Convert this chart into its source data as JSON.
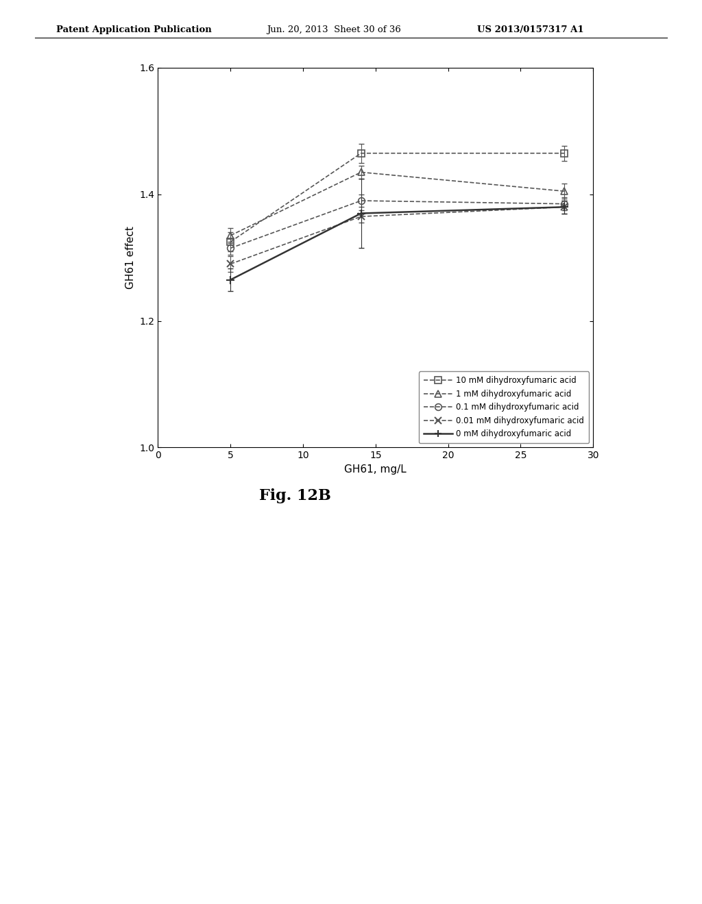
{
  "x_values": [
    5,
    14,
    28
  ],
  "series": [
    {
      "label": "10 mM dihydroxyfumaric acid",
      "y": [
        1.325,
        1.465,
        1.465
      ],
      "yerr": [
        0.015,
        0.015,
        0.012
      ],
      "marker": "s",
      "linestyle": "--",
      "linewidth": 1.2,
      "color": "#555555",
      "markersize": 7,
      "fillstyle": "none"
    },
    {
      "label": "1 mM dihydroxyfumaric acid",
      "y": [
        1.335,
        1.435,
        1.405
      ],
      "yerr": [
        0.012,
        0.01,
        0.012
      ],
      "marker": "^",
      "linestyle": "--",
      "linewidth": 1.2,
      "color": "#555555",
      "markersize": 7,
      "fillstyle": "none"
    },
    {
      "label": "0.1 mM dihydroxyfumaric acid",
      "y": [
        1.315,
        1.39,
        1.385
      ],
      "yerr": [
        0.01,
        0.01,
        0.01
      ],
      "marker": "o",
      "linestyle": "--",
      "linewidth": 1.2,
      "color": "#555555",
      "markersize": 7,
      "fillstyle": "none"
    },
    {
      "label": "0.01 mM dihydroxyfumaric acid",
      "y": [
        1.29,
        1.365,
        1.38
      ],
      "yerr": [
        0.012,
        0.01,
        0.01
      ],
      "marker": "x",
      "linestyle": "--",
      "linewidth": 1.2,
      "color": "#555555",
      "markersize": 7,
      "fillstyle": "none"
    },
    {
      "label": "0 mM dihydroxyfumaric acid",
      "y": [
        1.265,
        1.37,
        1.38
      ],
      "yerr": [
        0.018,
        0.055,
        0.01
      ],
      "marker": "+",
      "linestyle": "-",
      "linewidth": 1.8,
      "color": "#333333",
      "markersize": 9,
      "fillstyle": "none"
    }
  ],
  "markers_list": [
    "s",
    "^",
    "o",
    "x",
    "+"
  ],
  "linestyles_list": [
    "--",
    "--",
    "--",
    "--",
    "-"
  ],
  "xlabel": "GH61, mg/L",
  "ylabel": "GH61 effect",
  "xlim": [
    0,
    30
  ],
  "ylim": [
    1.0,
    1.6
  ],
  "xticks": [
    0,
    5,
    10,
    15,
    20,
    25,
    30
  ],
  "yticks": [
    1.0,
    1.2,
    1.4,
    1.6
  ],
  "header_left": "Patent Application Publication",
  "header_mid": "Jun. 20, 2013  Sheet 30 of 36",
  "header_right": "US 2013/0157317 A1",
  "fig_label": "Fig. 12B",
  "background_color": "#ffffff"
}
